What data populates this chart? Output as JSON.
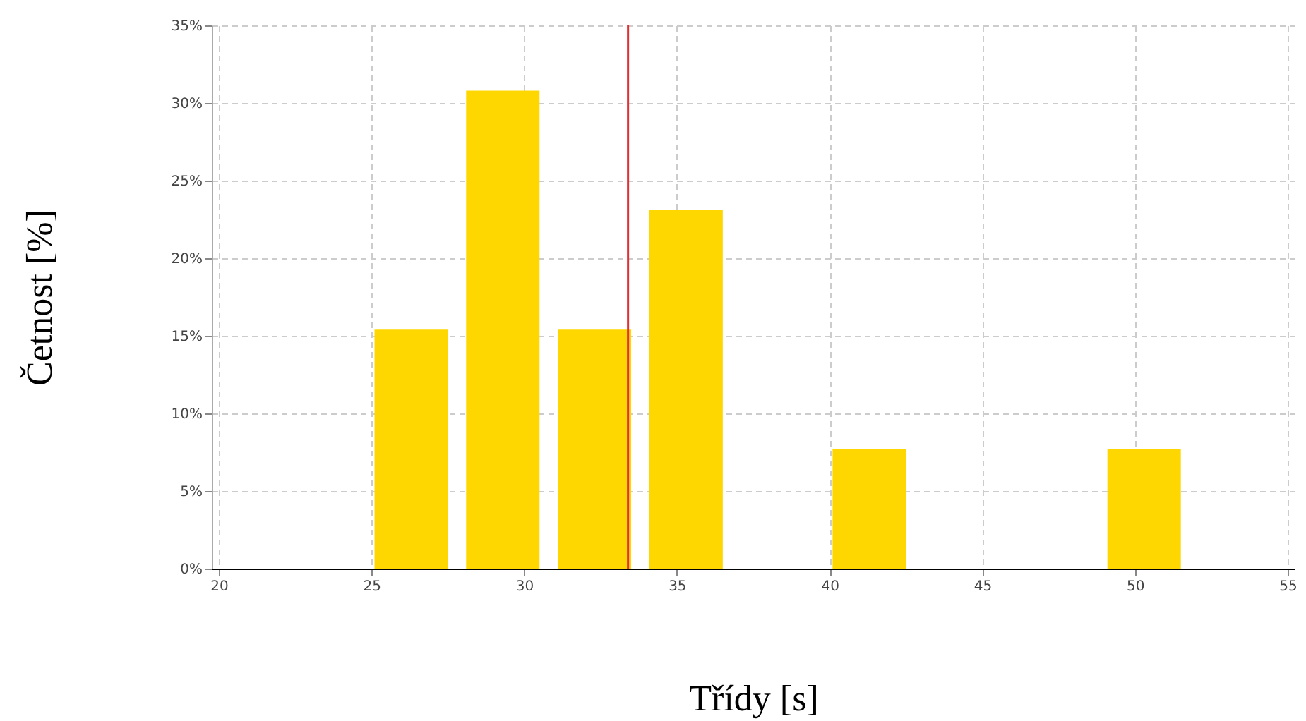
{
  "chart_data": {
    "type": "bar",
    "xlabel": "Třídy [s]",
    "ylabel": "Četnost [%]",
    "x": [
      26.3,
      29.3,
      32.3,
      35.3,
      41.3,
      50.3
    ],
    "values": [
      15.4,
      30.8,
      15.4,
      23.1,
      7.7,
      7.7
    ],
    "color": "#ffd700",
    "xlim": [
      20,
      55
    ],
    "xticks": [
      20,
      25,
      30,
      35,
      40,
      45,
      50,
      55
    ],
    "ylim": [
      0,
      35
    ],
    "yticks": [
      {
        "value": 0,
        "label": "0%"
      },
      {
        "value": 5,
        "label": "5%"
      },
      {
        "value": 10,
        "label": "10%"
      },
      {
        "value": 15,
        "label": "15%"
      },
      {
        "value": 20,
        "label": "20%"
      },
      {
        "value": 25,
        "label": "25%"
      },
      {
        "value": 30,
        "label": "30%"
      },
      {
        "value": 35,
        "label": "35%"
      }
    ],
    "ref_lines": [
      {
        "axis": "x",
        "value": 33.4,
        "color": "#e03030"
      }
    ],
    "grid": true
  }
}
